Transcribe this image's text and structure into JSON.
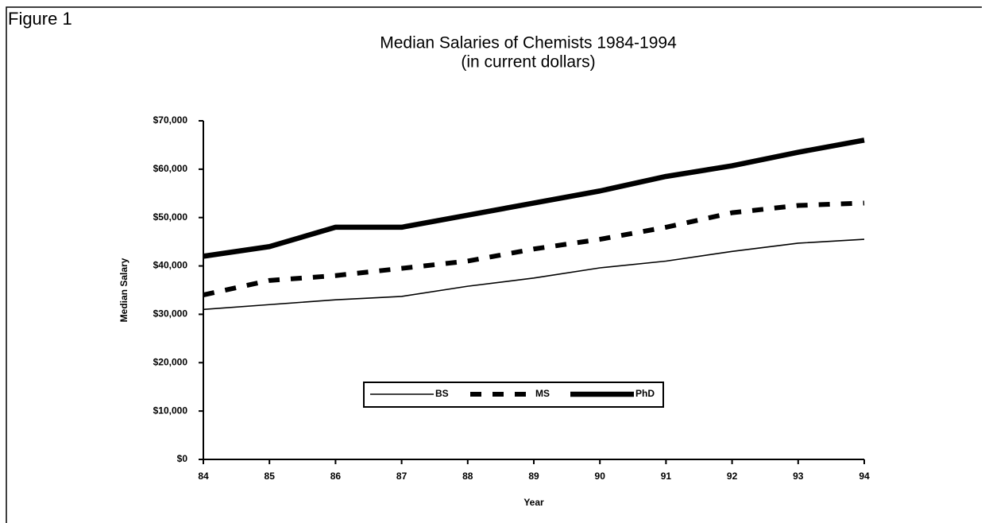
{
  "chart_data": {
    "type": "line",
    "figure_label": "Figure 1",
    "title": "Median Salaries of Chemists 1984-1994",
    "subtitle": "(in current dollars)",
    "x_label": "Year",
    "y_label": "Median Salary",
    "categories": [
      "84",
      "85",
      "86",
      "87",
      "88",
      "89",
      "90",
      "91",
      "92",
      "93",
      "94"
    ],
    "series": [
      {
        "name": "BS",
        "color": "#000000",
        "style": "thin",
        "values": [
          31000,
          32000,
          33000,
          33700,
          35800,
          37500,
          39600,
          41000,
          43000,
          44700,
          45500
        ]
      },
      {
        "name": "MS",
        "color": "#000000",
        "style": "dashed",
        "values": [
          34000,
          37000,
          38000,
          39500,
          41000,
          43500,
          45500,
          48000,
          51000,
          52500,
          53000
        ]
      },
      {
        "name": "PhD",
        "color": "#000000",
        "style": "thick",
        "values": [
          42000,
          44000,
          48000,
          48000,
          50500,
          53000,
          55500,
          58500,
          60700,
          63500,
          66000
        ]
      }
    ],
    "ylim": [
      0,
      70000
    ],
    "yticks": [
      {
        "value": 0,
        "label": "$0"
      },
      {
        "value": 10000,
        "label": "$10,000"
      },
      {
        "value": 20000,
        "label": "$20,000"
      },
      {
        "value": 30000,
        "label": "$30,000"
      },
      {
        "value": 40000,
        "label": "$40,000"
      },
      {
        "value": 50000,
        "label": "$50,000"
      },
      {
        "value": 60000,
        "label": "$60,000"
      },
      {
        "value": 70000,
        "label": "$70,000"
      }
    ],
    "grid": false,
    "legend": "bottom"
  }
}
